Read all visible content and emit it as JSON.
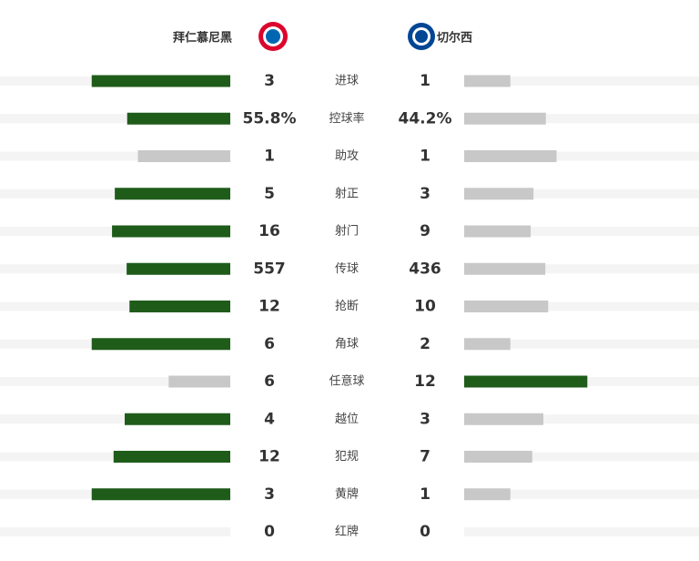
{
  "chart_data": {
    "type": "bar",
    "categories": [
      "进球",
      "控球率",
      "助攻",
      "射正",
      "射门",
      "传球",
      "抢断",
      "角球",
      "任意球",
      "越位",
      "犯规",
      "黄牌",
      "红牌"
    ],
    "series": [
      {
        "name": "拜仁慕尼黑",
        "values": [
          3,
          55.8,
          1,
          5,
          16,
          557,
          12,
          6,
          6,
          4,
          12,
          3,
          0
        ],
        "value_labels": [
          "3",
          "55.8%",
          "1",
          "5",
          "16",
          "557",
          "12",
          "6",
          "6",
          "4",
          "12",
          "3",
          "0"
        ]
      },
      {
        "name": "切尔西",
        "values": [
          1,
          44.2,
          1,
          3,
          9,
          436,
          10,
          2,
          12,
          3,
          7,
          1,
          0
        ],
        "value_labels": [
          "1",
          "44.2%",
          "1",
          "3",
          "9",
          "436",
          "10",
          "2",
          "12",
          "3",
          "7",
          "1",
          "0"
        ]
      }
    ],
    "leading_color": "#1f5c1a",
    "trailing_color": "#c8c8c8",
    "track_color": "#f4f4f4"
  }
}
